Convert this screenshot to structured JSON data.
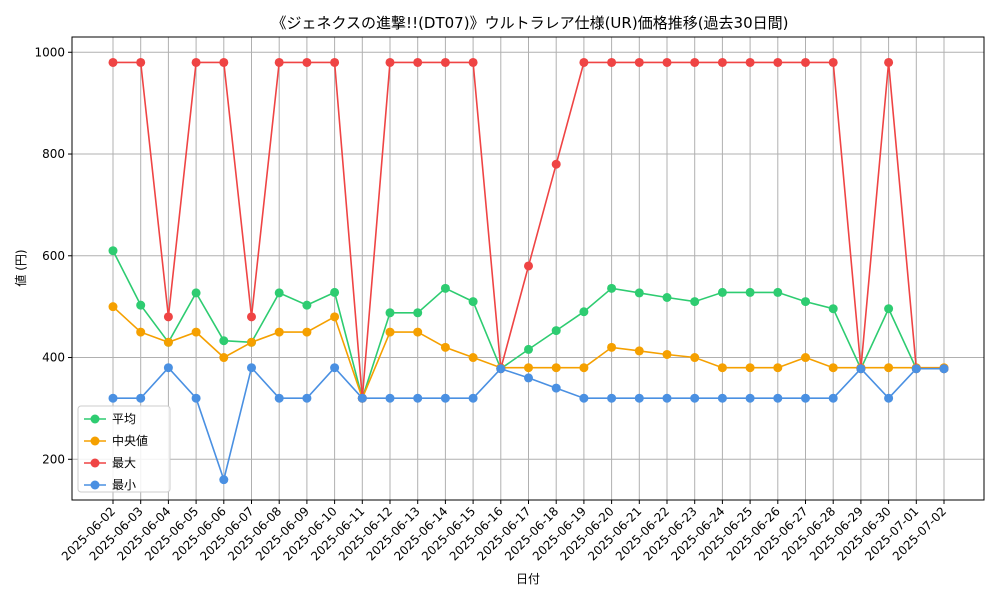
{
  "chart_data": {
    "type": "line",
    "title": "《ジェネクスの進撃!!(DT07)》ウルトラレア仕様(UR)価格推移(過去30日間)",
    "xlabel": "日付",
    "ylabel": "値 (円)",
    "ylim": [
      120,
      1030
    ],
    "yticks": [
      200,
      400,
      600,
      800,
      1000
    ],
    "grid": true,
    "legend_position": "lower-left",
    "categories": [
      "2025-06-02",
      "2025-06-03",
      "2025-06-04",
      "2025-06-05",
      "2025-06-06",
      "2025-06-07",
      "2025-06-08",
      "2025-06-09",
      "2025-06-10",
      "2025-06-11",
      "2025-06-12",
      "2025-06-13",
      "2025-06-14",
      "2025-06-15",
      "2025-06-16",
      "2025-06-17",
      "2025-06-18",
      "2025-06-19",
      "2025-06-20",
      "2025-06-21",
      "2025-06-22",
      "2025-06-23",
      "2025-06-24",
      "2025-06-25",
      "2025-06-26",
      "2025-06-27",
      "2025-06-28",
      "2025-06-29",
      "2025-06-30",
      "2025-07-01",
      "2025-07-02"
    ],
    "series": [
      {
        "name": "平均",
        "color": "#2ecc71",
        "values": [
          610,
          503,
          430,
          527,
          433,
          430,
          527,
          503,
          528,
          320,
          488,
          488,
          536,
          510,
          378,
          416,
          453,
          490,
          536,
          527,
          518,
          510,
          528,
          528,
          528,
          510,
          496,
          378,
          496,
          378,
          378
        ]
      },
      {
        "name": "中央値",
        "color": "#f5a000",
        "values": [
          500,
          450,
          430,
          450,
          400,
          430,
          450,
          450,
          480,
          320,
          450,
          450,
          420,
          400,
          380,
          380,
          380,
          380,
          420,
          413,
          406,
          400,
          380,
          380,
          380,
          400,
          380,
          380,
          380,
          380,
          380
        ]
      },
      {
        "name": "最大",
        "color": "#ef4444",
        "values": [
          980,
          980,
          480,
          980,
          980,
          480,
          980,
          980,
          980,
          320,
          980,
          980,
          980,
          980,
          378,
          580,
          780,
          980,
          980,
          980,
          980,
          980,
          980,
          980,
          980,
          980,
          980,
          378,
          980,
          378,
          378
        ]
      },
      {
        "name": "最小",
        "color": "#4a90e2",
        "values": [
          320,
          320,
          380,
          320,
          160,
          380,
          320,
          320,
          380,
          320,
          320,
          320,
          320,
          320,
          378,
          360,
          340,
          320,
          320,
          320,
          320,
          320,
          320,
          320,
          320,
          320,
          320,
          378,
          320,
          378,
          378
        ]
      }
    ]
  }
}
